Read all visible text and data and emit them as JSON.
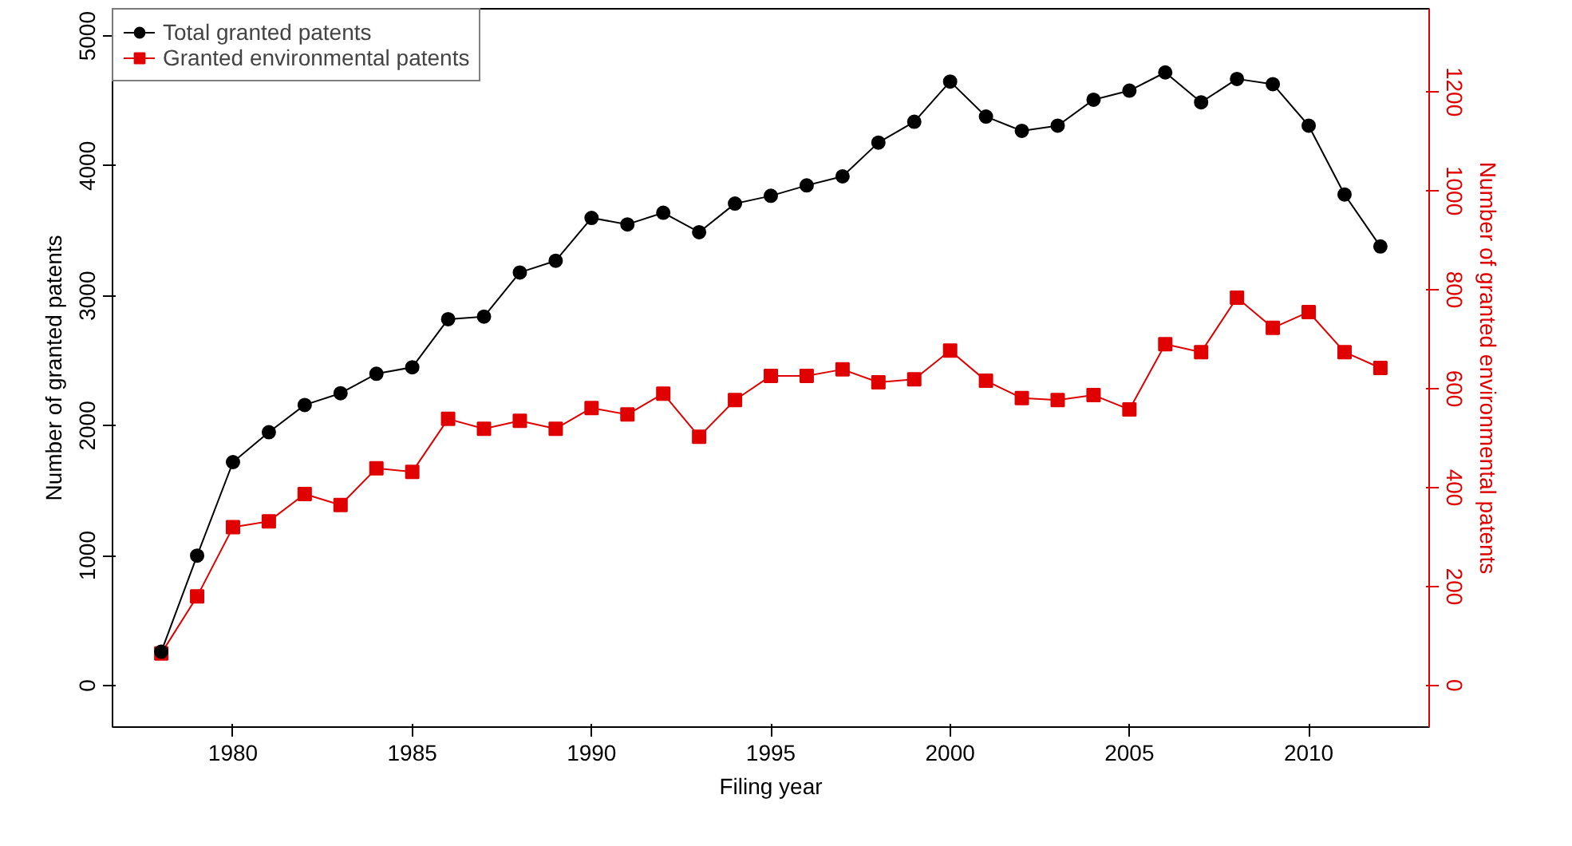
{
  "chart_data": {
    "type": "line",
    "xlabel": "Filing year",
    "ylabel": "Number of granted patents",
    "y2label": "Number of granted environmental patents",
    "x": [
      1978,
      1979,
      1980,
      1981,
      1982,
      1983,
      1984,
      1985,
      1986,
      1987,
      1988,
      1989,
      1990,
      1991,
      1992,
      1993,
      1994,
      1995,
      1996,
      1997,
      1998,
      1999,
      2000,
      2001,
      2002,
      2003,
      2004,
      2005,
      2006,
      2007,
      2008,
      2009,
      2010,
      2011,
      2012
    ],
    "series": [
      {
        "name": "Total granted patents",
        "color": "#000000",
        "marker": "circle",
        "values": [
          260,
          1000,
          1720,
          1950,
          2160,
          2250,
          2400,
          2450,
          2820,
          2840,
          3180,
          3270,
          3600,
          3550,
          3640,
          3490,
          3710,
          3770,
          3850,
          3920,
          4180,
          4340,
          4650,
          4380,
          4270,
          4310,
          4510,
          4580,
          4720,
          4490,
          4670,
          4630,
          4310,
          3780,
          3380
        ]
      },
      {
        "name": "Granted environmental patents",
        "color": "#e00000",
        "marker": "square",
        "axis": "y2",
        "values": [
          65,
          180,
          320,
          332,
          387,
          365,
          439,
          432,
          539,
          519,
          535,
          519,
          561,
          548,
          590,
          503,
          577,
          626,
          626,
          639,
          613,
          619,
          677,
          616,
          581,
          577,
          587,
          558,
          690,
          674,
          784,
          723,
          755,
          674,
          642
        ]
      }
    ],
    "xlim": [
      1976.64,
      2013.36
    ],
    "xticks": [
      1980,
      1985,
      1990,
      1995,
      2000,
      2005,
      2010
    ],
    "ylim": [
      -320,
      5210
    ],
    "yticks": [
      0,
      1000,
      2000,
      3000,
      4000,
      5000
    ],
    "y2lim": [
      -84,
      1368
    ],
    "y2ticks": [
      0,
      200,
      400,
      600,
      800,
      1000,
      1200
    ],
    "grid": false,
    "legend": "top left",
    "line_style": "solid"
  }
}
